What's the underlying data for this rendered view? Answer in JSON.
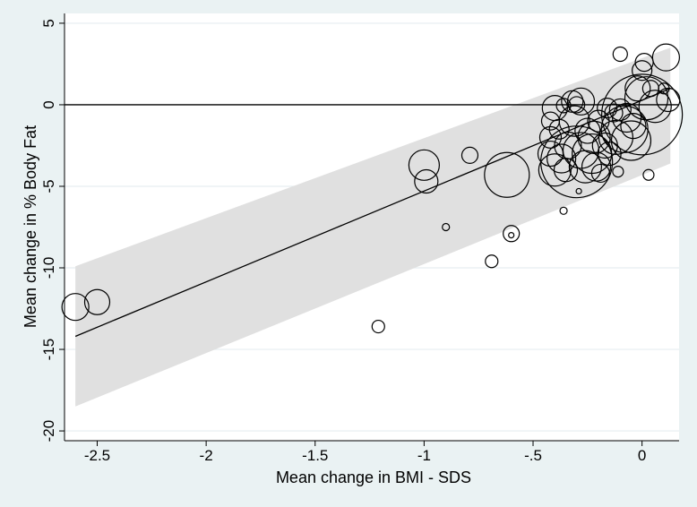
{
  "chart_data": {
    "type": "scatter",
    "title": "",
    "xlabel": "Mean change in BMI - SDS",
    "ylabel": "Mean change in % Body Fat",
    "xlim": [
      -2.65,
      0.17
    ],
    "ylim": [
      -20.6,
      5.6
    ],
    "x_ticks": [
      -2.5,
      -2,
      -1.5,
      -1,
      -0.5,
      0
    ],
    "x_tick_labels": [
      "-2.5",
      "-2",
      "-1.5",
      "-1",
      "-.5",
      "0"
    ],
    "y_ticks": [
      5,
      0,
      -5,
      -10,
      -15,
      -20
    ],
    "y_tick_labels": [
      "5",
      "0",
      "-5",
      "-10",
      "-15",
      "-20"
    ],
    "grid": "horizontal",
    "reference_line_y": 0,
    "fit_line": {
      "x": [
        -2.6,
        0.13
      ],
      "y": [
        -14.2,
        1.0
      ]
    },
    "prediction_band": {
      "x": [
        -2.6,
        0.13
      ],
      "upper": [
        -9.9,
        3.5
      ],
      "lower": [
        -18.5,
        -3.6
      ]
    },
    "marker": "hollow circle sized by study weight",
    "points": [
      {
        "x": -2.6,
        "y": -12.4,
        "size": 15
      },
      {
        "x": -2.5,
        "y": -12.1,
        "size": 14
      },
      {
        "x": -1.21,
        "y": -13.6,
        "size": 7
      },
      {
        "x": -1.0,
        "y": -3.7,
        "size": 17
      },
      {
        "x": -0.99,
        "y": -4.7,
        "size": 13
      },
      {
        "x": -0.9,
        "y": -7.5,
        "size": 4
      },
      {
        "x": -0.79,
        "y": -3.1,
        "size": 9
      },
      {
        "x": -0.69,
        "y": -9.6,
        "size": 7
      },
      {
        "x": -0.62,
        "y": -4.3,
        "size": 25
      },
      {
        "x": -0.6,
        "y": -7.9,
        "size": 9
      },
      {
        "x": -0.6,
        "y": -8.0,
        "size": 3
      },
      {
        "x": -0.42,
        "y": -1.0,
        "size": 10
      },
      {
        "x": -0.42,
        "y": -2.0,
        "size": 12
      },
      {
        "x": -0.42,
        "y": -3.0,
        "size": 14
      },
      {
        "x": -0.4,
        "y": -4.0,
        "size": 18
      },
      {
        "x": -0.4,
        "y": -0.2,
        "size": 14
      },
      {
        "x": -0.38,
        "y": -1.5,
        "size": 11
      },
      {
        "x": -0.37,
        "y": -3.3,
        "size": 16
      },
      {
        "x": -0.36,
        "y": -0.05,
        "size": 8
      },
      {
        "x": -0.36,
        "y": -6.5,
        "size": 4
      },
      {
        "x": -0.35,
        "y": -4.0,
        "size": 13
      },
      {
        "x": -0.34,
        "y": -2.5,
        "size": 15
      },
      {
        "x": -0.32,
        "y": 0.2,
        "size": 12
      },
      {
        "x": -0.31,
        "y": -1.0,
        "size": 17
      },
      {
        "x": -0.3,
        "y": -3.5,
        "size": 40
      },
      {
        "x": -0.3,
        "y": 0.0,
        "size": 9
      },
      {
        "x": -0.29,
        "y": -5.3,
        "size": 3
      },
      {
        "x": -0.28,
        "y": 0.2,
        "size": 15
      },
      {
        "x": -0.28,
        "y": -2.8,
        "size": 20
      },
      {
        "x": -0.26,
        "y": -3.8,
        "size": 18
      },
      {
        "x": -0.25,
        "y": -1.6,
        "size": 14
      },
      {
        "x": -0.23,
        "y": -3.0,
        "size": 22
      },
      {
        "x": -0.22,
        "y": -2.0,
        "size": 18
      },
      {
        "x": -0.21,
        "y": -3.8,
        "size": 16
      },
      {
        "x": -0.2,
        "y": -1.0,
        "size": 12
      },
      {
        "x": -0.19,
        "y": -4.2,
        "size": 10
      },
      {
        "x": -0.17,
        "y": -2.5,
        "size": 14
      },
      {
        "x": -0.16,
        "y": -0.2,
        "size": 11
      },
      {
        "x": -0.15,
        "y": -3.0,
        "size": 13
      },
      {
        "x": -0.13,
        "y": -0.5,
        "size": 10
      },
      {
        "x": -0.12,
        "y": -2.0,
        "size": 19
      },
      {
        "x": -0.11,
        "y": -4.1,
        "size": 6
      },
      {
        "x": -0.1,
        "y": -0.3,
        "size": 12
      },
      {
        "x": -0.1,
        "y": 3.1,
        "size": 8
      },
      {
        "x": -0.08,
        "y": -1.5,
        "size": 26
      },
      {
        "x": -0.07,
        "y": -0.8,
        "size": 16
      },
      {
        "x": -0.05,
        "y": -2.2,
        "size": 22
      },
      {
        "x": -0.04,
        "y": -1.3,
        "size": 14
      },
      {
        "x": -0.02,
        "y": 1.0,
        "size": 14
      },
      {
        "x": 0.0,
        "y": -0.6,
        "size": 45
      },
      {
        "x": 0.0,
        "y": 2.1,
        "size": 11
      },
      {
        "x": 0.01,
        "y": 2.6,
        "size": 10
      },
      {
        "x": 0.02,
        "y": 0.4,
        "size": 24
      },
      {
        "x": 0.03,
        "y": -4.3,
        "size": 6
      },
      {
        "x": 0.04,
        "y": 1.0,
        "size": 9
      },
      {
        "x": 0.06,
        "y": -0.1,
        "size": 18
      },
      {
        "x": 0.1,
        "y": 1.0,
        "size": 6
      },
      {
        "x": 0.11,
        "y": 2.9,
        "size": 15
      },
      {
        "x": 0.12,
        "y": 0.3,
        "size": 13
      }
    ]
  }
}
